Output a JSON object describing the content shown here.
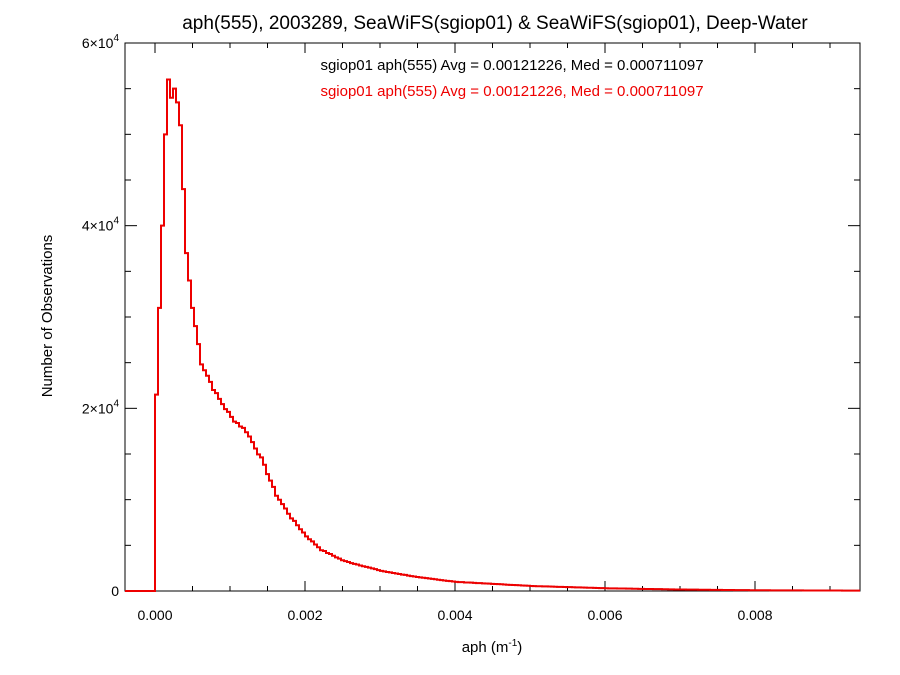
{
  "chart_data": {
    "type": "histogram",
    "title": "aph(555), 2003289, SeaWiFS(sgiop01) & SeaWiFS(sgiop01), Deep-Water",
    "xlabel": "aph (m",
    "xlabel_sup": "-1",
    "xlabel_close": ")",
    "ylabel": "Number of Observations",
    "xlim": [
      -0.0004,
      0.0094
    ],
    "ylim": [
      0,
      60000
    ],
    "x_ticks": [
      0.0,
      0.002,
      0.004,
      0.006,
      0.008
    ],
    "x_tick_labels": [
      "0.000",
      "0.002",
      "0.004",
      "0.006",
      "0.008"
    ],
    "y_ticks": [
      0,
      20000,
      40000,
      60000
    ],
    "y_tick_labels": [
      {
        "base": "0",
        "exp": ""
      },
      {
        "base": "2×10",
        "exp": "4"
      },
      {
        "base": "4×10",
        "exp": "4"
      },
      {
        "base": "6×10",
        "exp": "4"
      }
    ],
    "bin_width": 4e-05,
    "grid": false,
    "legend_position": "top-center",
    "series": [
      {
        "name": "sgiop01 aph(555) Avg = 0.00121226, Med = 0.000711097",
        "color": "#000000",
        "avg": 0.00121226,
        "median": 0.000711097
      },
      {
        "name": "sgiop01 aph(555) Avg = 0.00121226, Med = 0.000711097",
        "color": "#ee0000",
        "avg": 0.00121226,
        "median": 0.000711097
      }
    ],
    "key_points": [
      [
        -0.0004,
        0
      ],
      [
        -4e-05,
        0
      ],
      [
        0.0,
        21500
      ],
      [
        4e-05,
        31000
      ],
      [
        8e-05,
        40000
      ],
      [
        0.00012,
        50000
      ],
      [
        0.00016,
        56000
      ],
      [
        0.0002,
        54000
      ],
      [
        0.00024,
        55000
      ],
      [
        0.00028,
        53500
      ],
      [
        0.00032,
        51000
      ],
      [
        0.00036,
        44000
      ],
      [
        0.0004,
        37000
      ],
      [
        0.00048,
        31000
      ],
      [
        0.0006,
        25000
      ],
      [
        0.0008,
        21500
      ],
      [
        0.001,
        19000
      ],
      [
        0.0012,
        17500
      ],
      [
        0.0014,
        14500
      ],
      [
        0.0016,
        10500
      ],
      [
        0.0018,
        8000
      ],
      [
        0.002,
        6000
      ],
      [
        0.0022,
        4500
      ],
      [
        0.0025,
        3300
      ],
      [
        0.003,
        2200
      ],
      [
        0.0035,
        1500
      ],
      [
        0.004,
        1000
      ],
      [
        0.005,
        550
      ],
      [
        0.006,
        300
      ],
      [
        0.007,
        160
      ],
      [
        0.008,
        80
      ],
      [
        0.0094,
        40
      ]
    ]
  }
}
